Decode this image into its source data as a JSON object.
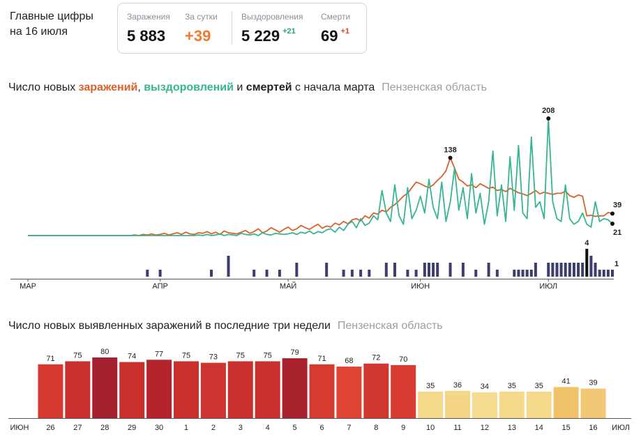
{
  "header": {
    "title": "Главные цифры",
    "date": "на 16 июля"
  },
  "stats": [
    {
      "label": "Заражения",
      "value": "5 883"
    },
    {
      "label": "За сутки",
      "value": "+39"
    },
    {
      "label": "Выздоровления",
      "value": "5 229",
      "change": "+21"
    },
    {
      "label": "Смерти",
      "value": "69",
      "change": "+1"
    }
  ],
  "chart_data": [
    {
      "type": "line",
      "title_parts": [
        "Число новых ",
        "заражений",
        ", ",
        "выздоровлений",
        " и ",
        "смертей",
        " с начала марта"
      ],
      "subtitle": "Пензенская область",
      "categories": [
        "МАР",
        null,
        null,
        null,
        null,
        null,
        null,
        null,
        null,
        null,
        null,
        null,
        null,
        null,
        null,
        null,
        null,
        null,
        null,
        null,
        null,
        null,
        null,
        null,
        null,
        null,
        null,
        null,
        null,
        null,
        null,
        "АПР",
        null,
        null,
        null,
        null,
        null,
        null,
        null,
        null,
        null,
        null,
        null,
        null,
        null,
        null,
        null,
        null,
        null,
        null,
        null,
        null,
        null,
        null,
        null,
        null,
        null,
        null,
        null,
        null,
        null,
        "МАЙ",
        null,
        null,
        null,
        null,
        null,
        null,
        null,
        null,
        null,
        null,
        null,
        null,
        null,
        null,
        null,
        null,
        null,
        null,
        null,
        null,
        null,
        null,
        null,
        null,
        null,
        null,
        null,
        null,
        null,
        null,
        "ИЮН",
        null,
        null,
        null,
        null,
        null,
        null,
        null,
        null,
        null,
        null,
        null,
        null,
        null,
        null,
        null,
        null,
        null,
        null,
        null,
        null,
        null,
        null,
        null,
        null,
        null,
        null,
        null,
        null,
        null,
        "ИЮЛ",
        null,
        null,
        null,
        null,
        null,
        null,
        null,
        null,
        null,
        null,
        null,
        null,
        null,
        null,
        null
      ],
      "series": [
        {
          "color": "#d9622b",
          "values": [
            0,
            0,
            0,
            0,
            0,
            0,
            0,
            0,
            0,
            0,
            0,
            0,
            0,
            0,
            0,
            0,
            0,
            0,
            0,
            0,
            0,
            0,
            0,
            0,
            0,
            1,
            0,
            2,
            1,
            3,
            1,
            2,
            4,
            1,
            3,
            5,
            2,
            6,
            3,
            2,
            5,
            4,
            7,
            3,
            6,
            2,
            8,
            5,
            4,
            3,
            6,
            9,
            4,
            7,
            12,
            5,
            8,
            14,
            10,
            6,
            11,
            15,
            9,
            12,
            18,
            14,
            11,
            16,
            20,
            13,
            17,
            15,
            22,
            19,
            25,
            21,
            28,
            30,
            26,
            35,
            31,
            40,
            38,
            45,
            42,
            50,
            55,
            62,
            70,
            75,
            85,
            95,
            92,
            88,
            85,
            90,
            98,
            105,
            115,
            138,
            120,
            100,
            95,
            88,
            90,
            85,
            92,
            88,
            84,
            86,
            80,
            82,
            78,
            84,
            80,
            76,
            74,
            71,
            75,
            80,
            74,
            77,
            75,
            73,
            75,
            75,
            79,
            71,
            68,
            72,
            70,
            35,
            36,
            34,
            35,
            35,
            41,
            39
          ]
        },
        {
          "color": "#35b594",
          "values": [
            0,
            0,
            0,
            0,
            0,
            0,
            0,
            0,
            0,
            0,
            0,
            0,
            0,
            0,
            0,
            0,
            0,
            0,
            0,
            0,
            0,
            0,
            0,
            0,
            0,
            0,
            0,
            0,
            0,
            0,
            0,
            0,
            0,
            0,
            0,
            0,
            0,
            0,
            0,
            0,
            1,
            0,
            2,
            0,
            1,
            3,
            0,
            2,
            1,
            0,
            4,
            2,
            1,
            3,
            0,
            5,
            2,
            1,
            4,
            3,
            2,
            3,
            5,
            2,
            6,
            4,
            8,
            3,
            7,
            5,
            10,
            12,
            6,
            15,
            9,
            20,
            25,
            14,
            30,
            18,
            22,
            35,
            28,
            80,
            40,
            25,
            90,
            35,
            20,
            85,
            30,
            45,
            70,
            40,
            100,
            50,
            30,
            95,
            25,
            60,
            120,
            45,
            85,
            30,
            110,
            40,
            75,
            20,
            60,
            150,
            35,
            90,
            25,
            140,
            45,
            160,
            40,
            30,
            175,
            50,
            60,
            30,
            208,
            60,
            30,
            25,
            90,
            30,
            20,
            25,
            40,
            20,
            15,
            60,
            25,
            30,
            28,
            21
          ]
        },
        {
          "type": "bar",
          "axis": "y2",
          "color": "#3c3f6c",
          "values": [
            0,
            0,
            0,
            0,
            0,
            0,
            0,
            0,
            0,
            0,
            0,
            0,
            0,
            0,
            0,
            0,
            0,
            0,
            0,
            0,
            0,
            0,
            0,
            0,
            0,
            0,
            0,
            0,
            1,
            0,
            0,
            1,
            0,
            0,
            0,
            0,
            0,
            0,
            0,
            0,
            0,
            0,
            0,
            1,
            0,
            0,
            0,
            3,
            0,
            0,
            0,
            0,
            0,
            1,
            0,
            0,
            1,
            0,
            0,
            1,
            0,
            0,
            0,
            2,
            0,
            0,
            0,
            0,
            0,
            0,
            2,
            0,
            0,
            0,
            1,
            0,
            1,
            0,
            1,
            0,
            1,
            0,
            0,
            0,
            2,
            0,
            2,
            0,
            0,
            1,
            0,
            1,
            0,
            2,
            2,
            2,
            2,
            0,
            0,
            2,
            0,
            0,
            2,
            0,
            0,
            1,
            0,
            0,
            2,
            0,
            1,
            0,
            0,
            0,
            1,
            1,
            1,
            1,
            1,
            2,
            0,
            0,
            2,
            2,
            2,
            2,
            2,
            2,
            2,
            2,
            2,
            4,
            3,
            2,
            1,
            1,
            1,
            1
          ]
        }
      ]
    },
    {
      "type": "bar",
      "title": "Число новых выявленных заражений в последние три недели",
      "subtitle": "Пензенская область",
      "categories": [
        "26",
        "27",
        "28",
        "29",
        "30",
        "1",
        "2",
        "3",
        "4",
        "5",
        "6",
        "7",
        "8",
        "9",
        "10",
        "11",
        "12",
        "13",
        "14",
        "15",
        "16"
      ],
      "label_colors": [
        "#333",
        "#d33",
        "#d33",
        "#333",
        "#333",
        "#333",
        "#333",
        "#333",
        "#d33",
        "#d33",
        "#333",
        "#333",
        "#333",
        "#333",
        "#333",
        "#d33",
        "#d33",
        "#333",
        "#333",
        "#333",
        "#333"
      ],
      "values": [
        71,
        75,
        80,
        74,
        77,
        75,
        73,
        75,
        75,
        79,
        71,
        68,
        72,
        70,
        35,
        36,
        34,
        35,
        35,
        41,
        39
      ],
      "colors": [
        "#d63a2f",
        "#c9302c",
        "#a5202e",
        "#c9302c",
        "#b3242d",
        "#c9302c",
        "#cc3530",
        "#c9302c",
        "#c9302c",
        "#a8222e",
        "#d63b2f",
        "#e04434",
        "#d0372f",
        "#d83c30",
        "#f6da8c",
        "#f5d688",
        "#f6dc90",
        "#f6da8c",
        "#f6da8c",
        "#f0c36a",
        "#f2c877"
      ],
      "x_edge_labels": [
        "ИЮН",
        "ИЮЛ"
      ]
    }
  ]
}
